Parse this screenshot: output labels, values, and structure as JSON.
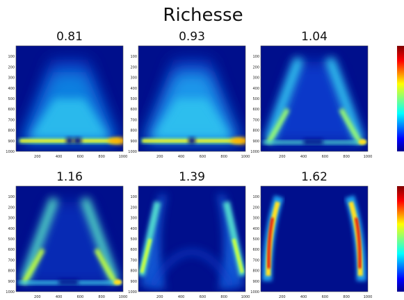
{
  "figure": {
    "title": "Richesse"
  },
  "chart_data": [
    {
      "type": "heatmap",
      "title": "0.81",
      "pattern": "trapezoid-fill",
      "xticks": [
        "200",
        "400",
        "600",
        "800",
        "1000"
      ],
      "yticks": [
        "100",
        "200",
        "300",
        "400",
        "500",
        "600",
        "700",
        "800",
        "900",
        "1000"
      ],
      "xlim": [
        1,
        1000
      ],
      "ylim": [
        1000,
        1
      ],
      "colormap": "jet"
    },
    {
      "type": "heatmap",
      "title": "0.93",
      "pattern": "trapezoid-fill",
      "xticks": [
        "200",
        "400",
        "600",
        "800",
        "1000"
      ],
      "yticks": [
        "100",
        "200",
        "300",
        "400",
        "500",
        "600",
        "700",
        "800",
        "900",
        "1000"
      ],
      "xlim": [
        1,
        1000
      ],
      "ylim": [
        1000,
        1
      ],
      "colormap": "jet"
    },
    {
      "type": "heatmap",
      "title": "1.04",
      "pattern": "two-plumes",
      "xticks": [
        "200",
        "400",
        "600",
        "800",
        "1000"
      ],
      "yticks": [
        "100",
        "200",
        "300",
        "400",
        "500",
        "600",
        "700",
        "800",
        "900",
        "1000"
      ],
      "xlim": [
        1,
        1000
      ],
      "ylim": [
        1000,
        1
      ],
      "colormap": "jet"
    },
    {
      "type": "heatmap",
      "title": "1.16",
      "pattern": "two-plumes-strong",
      "xticks": [
        "200",
        "400",
        "600",
        "800",
        "1000"
      ],
      "yticks": [
        "100",
        "200",
        "300",
        "400",
        "500",
        "600",
        "700",
        "800",
        "900",
        "1000"
      ],
      "xlim": [
        1,
        1000
      ],
      "ylim": [
        1000,
        1
      ],
      "colormap": "jet"
    },
    {
      "type": "heatmap",
      "title": "1.39",
      "pattern": "edge-plumes",
      "xticks": [
        "200",
        "400",
        "600",
        "800",
        "1000"
      ],
      "yticks": [
        "100",
        "200",
        "300",
        "400",
        "500",
        "600",
        "700",
        "800",
        "900",
        "1000"
      ],
      "xlim": [
        1,
        1000
      ],
      "ylim": [
        1000,
        1
      ],
      "colormap": "jet"
    },
    {
      "type": "heatmap",
      "title": "1.62",
      "pattern": "thin-red-plumes",
      "xticks": [
        "200",
        "400",
        "600",
        "800",
        "1000"
      ],
      "yticks": [
        "100",
        "200",
        "300",
        "400",
        "500",
        "600",
        "700",
        "800",
        "900",
        "1000"
      ],
      "xlim": [
        1,
        1000
      ],
      "ylim": [
        1000,
        1
      ],
      "colormap": "jet"
    }
  ],
  "colors": {
    "background": "#000F8C",
    "jet": [
      "#00008f",
      "#0000ff",
      "#00a0ff",
      "#00ffff",
      "#80ff80",
      "#ffff00",
      "#ff8000",
      "#ff0000",
      "#800000"
    ]
  }
}
